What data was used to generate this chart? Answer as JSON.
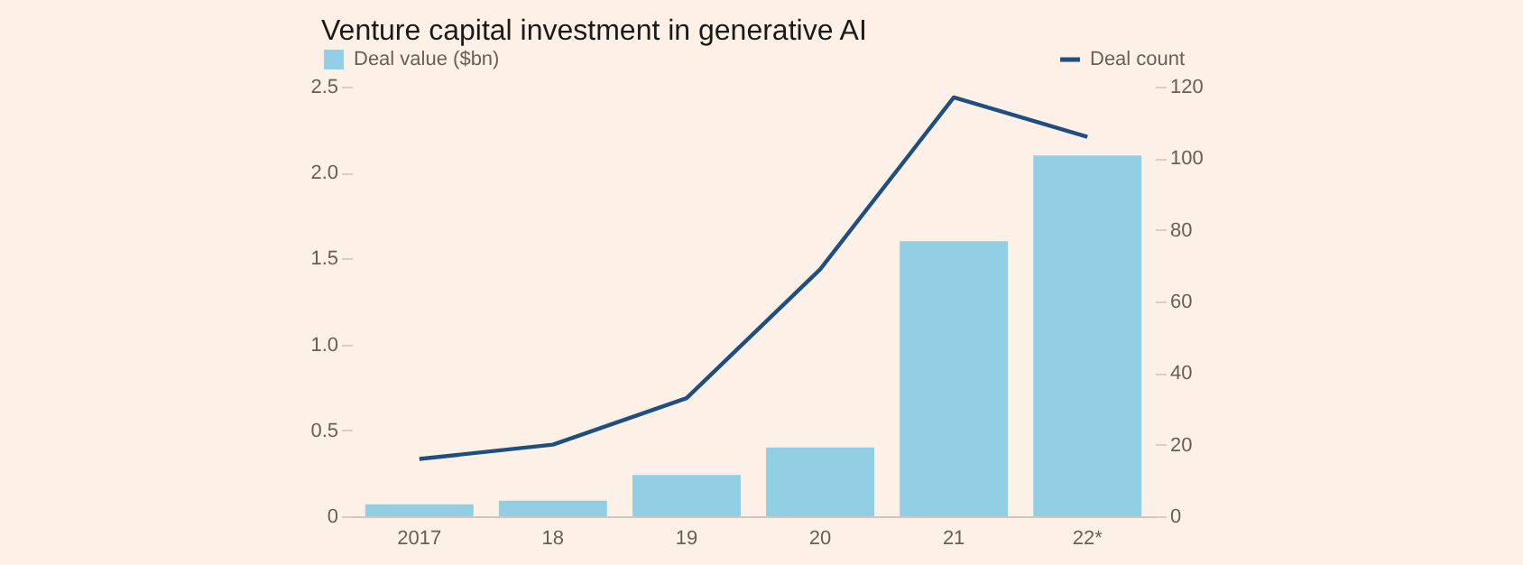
{
  "chart_data": {
    "type": "bar",
    "title": "Venture capital investment in generative AI",
    "categories": [
      "2017",
      "18",
      "19",
      "20",
      "21",
      "22*"
    ],
    "series": [
      {
        "name": "Deal value ($bn)",
        "color": "#92cfe4",
        "values": [
          0.07,
          0.09,
          0.24,
          0.4,
          1.6,
          2.1
        ]
      },
      {
        "name": "Deal count",
        "type": "line",
        "axis": "y2",
        "color": "#1f4e80",
        "values": [
          16,
          20,
          33,
          69,
          117,
          106
        ]
      }
    ],
    "ylim": [
      0,
      2.5
    ],
    "yticks": [
      0,
      0.5,
      {
        "value": 1,
        "label": "1.0"
      },
      1.5,
      {
        "value": 2,
        "label": "2.0"
      },
      2.5
    ],
    "y2lim": [
      0,
      120
    ],
    "y2ticks": [
      0,
      20,
      40,
      60,
      80,
      100,
      120
    ],
    "legend": "top",
    "grid": false
  }
}
